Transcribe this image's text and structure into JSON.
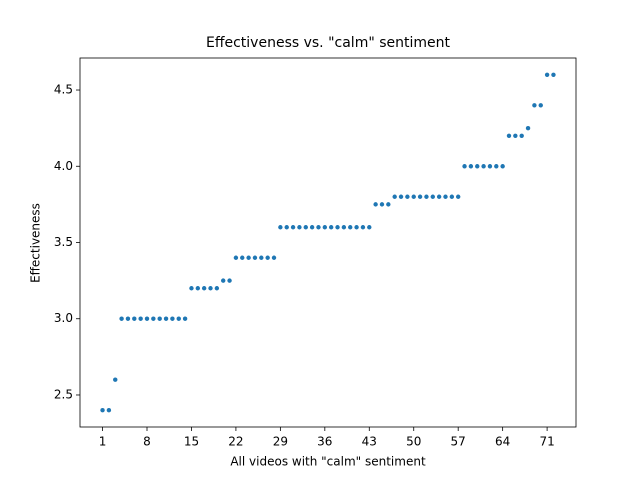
{
  "chart_data": {
    "type": "scatter",
    "title": "Effectiveness vs. \"calm\" sentiment",
    "x_label": "All videos with \"calm\" sentiment",
    "y_label": "Effectiveness",
    "color": "#1f77b4",
    "x": [
      1,
      2,
      3,
      4,
      5,
      6,
      7,
      8,
      9,
      10,
      11,
      12,
      13,
      14,
      15,
      16,
      17,
      18,
      19,
      20,
      21,
      22,
      23,
      24,
      25,
      26,
      27,
      28,
      29,
      30,
      31,
      32,
      33,
      34,
      35,
      36,
      37,
      38,
      39,
      40,
      41,
      42,
      43,
      44,
      45,
      46,
      47,
      48,
      49,
      50,
      51,
      52,
      53,
      54,
      55,
      56,
      57,
      58,
      59,
      60,
      61,
      62,
      63,
      64,
      65,
      66,
      67,
      68,
      69,
      70,
      71,
      72
    ],
    "values": [
      2.4,
      2.4,
      2.6,
      3.0,
      3.0,
      3.0,
      3.0,
      3.0,
      3.0,
      3.0,
      3.0,
      3.0,
      3.0,
      3.0,
      3.2,
      3.2,
      3.2,
      3.2,
      3.2,
      3.25,
      3.25,
      3.4,
      3.4,
      3.4,
      3.4,
      3.4,
      3.4,
      3.4,
      3.6,
      3.6,
      3.6,
      3.6,
      3.6,
      3.6,
      3.6,
      3.6,
      3.6,
      3.6,
      3.6,
      3.6,
      3.6,
      3.6,
      3.6,
      3.75,
      3.75,
      3.75,
      3.8,
      3.8,
      3.8,
      3.8,
      3.8,
      3.8,
      3.8,
      3.8,
      3.8,
      3.8,
      3.8,
      4.0,
      4.0,
      4.0,
      4.0,
      4.0,
      4.0,
      4.0,
      4.2,
      4.2,
      4.2,
      4.25,
      4.4,
      4.4,
      4.6,
      4.6
    ],
    "xlim": [
      -2.55,
      75.55
    ],
    "xticks": [
      1,
      8,
      15,
      22,
      29,
      36,
      43,
      50,
      57,
      64,
      71
    ],
    "ylim": [
      2.29,
      4.71
    ],
    "yticks": [
      2.5,
      {
        "value": 3.0,
        "label": "3.0"
      },
      3.5,
      {
        "value": 4.0,
        "label": "4.0"
      },
      4.5
    ]
  }
}
